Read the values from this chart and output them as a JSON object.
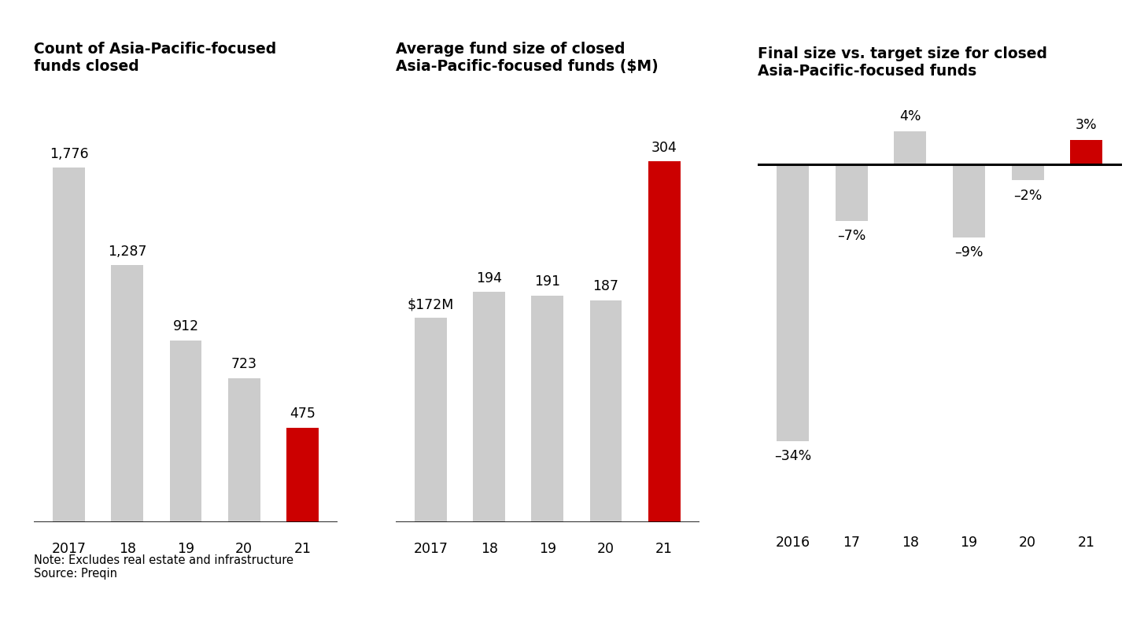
{
  "chart1": {
    "title": "Count of Asia-Pacific-focused\nfunds closed",
    "categories": [
      "2017",
      "18",
      "19",
      "20",
      "21"
    ],
    "values": [
      1776,
      1287,
      912,
      723,
      475
    ],
    "labels": [
      "1,776",
      "1,287",
      "912",
      "723",
      "475"
    ],
    "colors": [
      "#cccccc",
      "#cccccc",
      "#cccccc",
      "#cccccc",
      "#cc0000"
    ],
    "ylim": [
      0,
      2200
    ]
  },
  "chart2": {
    "title": "Average fund size of closed\nAsia-Pacific-focused funds ($M)",
    "categories": [
      "2017",
      "18",
      "19",
      "20",
      "21"
    ],
    "values": [
      172,
      194,
      191,
      187,
      304
    ],
    "labels": [
      "$172M",
      "194",
      "191",
      "187",
      "304"
    ],
    "colors": [
      "#cccccc",
      "#cccccc",
      "#cccccc",
      "#cccccc",
      "#cc0000"
    ],
    "ylim": [
      0,
      370
    ]
  },
  "chart3": {
    "title": "Final size vs. target size for closed\nAsia-Pacific-focused funds",
    "categories": [
      "2016",
      "17",
      "18",
      "19",
      "20",
      "21"
    ],
    "values": [
      -34,
      -7,
      4,
      -9,
      -2,
      3
    ],
    "label_texts": [
      "–34%",
      "–7%",
      "4%",
      "–9%",
      "–2%",
      "3%"
    ],
    "colors": [
      "#cccccc",
      "#cccccc",
      "#cccccc",
      "#cccccc",
      "#cccccc",
      "#cc0000"
    ],
    "ylim": [
      -44,
      10
    ]
  },
  "note": "Note: Excludes real estate and infrastructure\nSource: Preqin",
  "background_color": "#ffffff",
  "title_fontsize": 13.5,
  "label_fontsize": 12.5,
  "axis_fontsize": 12.5,
  "note_fontsize": 10.5
}
